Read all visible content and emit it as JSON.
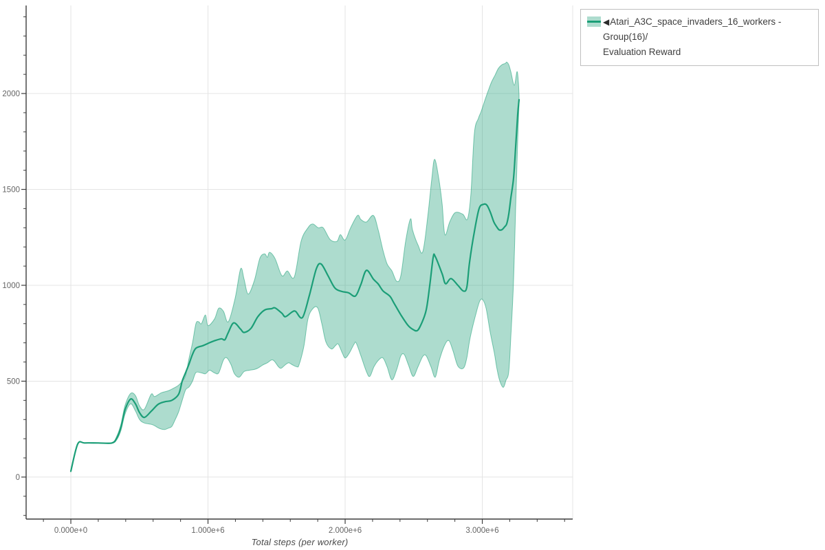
{
  "page": {
    "background": "#ffffff"
  },
  "legend": {
    "arrow": "◀",
    "label_line1": "Atari_A3C_space_invaders_16_workers - Group(16)/",
    "label_line2": "Evaluation Reward",
    "marker_color": "#1b9e77",
    "band_color": "rgba(27,158,119,0.36)"
  },
  "axes": {
    "x_title": "Total steps (per worker)",
    "tick_label_color": "#646464",
    "axis_color": "#3b3b3b",
    "grid_color": "#e4e4e4"
  },
  "chart_data": {
    "type": "line",
    "title": "",
    "xlabel": "Total steps (per worker)",
    "ylabel": "",
    "x_units": "steps (values in millions, labels in scientific notation)",
    "xlim": [
      -0.326,
      3.659
    ],
    "ylim": [
      -219,
      2459
    ],
    "grid": "major",
    "legend_position": "outside top-right",
    "band_color": "rgba(27,158,119,0.36)",
    "band_edge_color": "rgba(27,158,119,0.55)",
    "x_ticks": [
      {
        "value": 0,
        "label": "0.000e+0"
      },
      {
        "value": 1,
        "label": "1.000e+6"
      },
      {
        "value": 2,
        "label": "2.000e+6"
      },
      {
        "value": 3,
        "label": "3.000e+6"
      }
    ],
    "x_minor_step": 0.2,
    "x_grid_extra": [
      3.659
    ],
    "y_ticks": [
      {
        "value": 0,
        "label": "0"
      },
      {
        "value": 500,
        "label": "500"
      },
      {
        "value": 1000,
        "label": "1000"
      },
      {
        "value": 1500,
        "label": "1500"
      },
      {
        "value": 2000,
        "label": "2000"
      }
    ],
    "y_minor_step": 100,
    "series": [
      {
        "name": "Atari_A3C_space_invaders_16_workers - Group(16)/Evaluation Reward (mean)",
        "role": "mean",
        "color": "#1b9e77",
        "points": [
          [
            0.0,
            30
          ],
          [
            0.05,
            172
          ],
          [
            0.1,
            178
          ],
          [
            0.2,
            178
          ],
          [
            0.3,
            178
          ],
          [
            0.336,
            205
          ],
          [
            0.366,
            262
          ],
          [
            0.396,
            352
          ],
          [
            0.436,
            407
          ],
          [
            0.471,
            382
          ],
          [
            0.501,
            336
          ],
          [
            0.536,
            311
          ],
          [
            0.586,
            343
          ],
          [
            0.636,
            379
          ],
          [
            0.686,
            393
          ],
          [
            0.736,
            400
          ],
          [
            0.786,
            432
          ],
          [
            0.812,
            500
          ],
          [
            0.837,
            545
          ],
          [
            0.862,
            590
          ],
          [
            0.887,
            640
          ],
          [
            0.912,
            672
          ],
          [
            0.962,
            685
          ],
          [
            1.0,
            697
          ],
          [
            1.048,
            711
          ],
          [
            1.098,
            721
          ],
          [
            1.123,
            716
          ],
          [
            1.148,
            754
          ],
          [
            1.188,
            804
          ],
          [
            1.238,
            771
          ],
          [
            1.263,
            754
          ],
          [
            1.313,
            775
          ],
          [
            1.363,
            836
          ],
          [
            1.413,
            871
          ],
          [
            1.464,
            878
          ],
          [
            1.489,
            882
          ],
          [
            1.539,
            854
          ],
          [
            1.564,
            836
          ],
          [
            1.614,
            861
          ],
          [
            1.639,
            864
          ],
          [
            1.689,
            832
          ],
          [
            1.74,
            950
          ],
          [
            1.79,
            1086
          ],
          [
            1.825,
            1111
          ],
          [
            1.875,
            1050
          ],
          [
            1.925,
            986
          ],
          [
            1.975,
            968
          ],
          [
            2.025,
            961
          ],
          [
            2.075,
            944
          ],
          [
            2.115,
            1005
          ],
          [
            2.155,
            1078
          ],
          [
            2.206,
            1032
          ],
          [
            2.241,
            1007
          ],
          [
            2.276,
            971
          ],
          [
            2.326,
            943
          ],
          [
            2.356,
            907
          ],
          [
            2.406,
            846
          ],
          [
            2.456,
            793
          ],
          [
            2.491,
            771
          ],
          [
            2.526,
            764
          ],
          [
            2.556,
            800
          ],
          [
            2.591,
            871
          ],
          [
            2.617,
            1000
          ],
          [
            2.642,
            1146
          ],
          [
            2.657,
            1150
          ],
          [
            2.707,
            1060
          ],
          [
            2.732,
            1008
          ],
          [
            2.772,
            1035
          ],
          [
            2.822,
            1000
          ],
          [
            2.862,
            970
          ],
          [
            2.887,
            990
          ],
          [
            2.907,
            1120
          ],
          [
            2.942,
            1280
          ],
          [
            2.977,
            1400
          ],
          [
            3.008,
            1422
          ],
          [
            3.033,
            1418
          ],
          [
            3.058,
            1382
          ],
          [
            3.083,
            1332
          ],
          [
            3.103,
            1307
          ],
          [
            3.123,
            1289
          ],
          [
            3.143,
            1290
          ],
          [
            3.163,
            1305
          ],
          [
            3.178,
            1320
          ],
          [
            3.193,
            1371
          ],
          [
            3.208,
            1455
          ],
          [
            3.228,
            1560
          ],
          [
            3.243,
            1720
          ],
          [
            3.258,
            1890
          ],
          [
            3.268,
            1968
          ]
        ]
      },
      {
        "name": "band upper (max)",
        "role": "band_upper",
        "color": "rgba(27,158,119,0.36)",
        "points": [
          [
            0.0,
            30
          ],
          [
            0.05,
            172
          ],
          [
            0.1,
            178
          ],
          [
            0.2,
            178
          ],
          [
            0.3,
            180
          ],
          [
            0.336,
            215
          ],
          [
            0.366,
            278
          ],
          [
            0.396,
            375
          ],
          [
            0.436,
            436
          ],
          [
            0.471,
            425
          ],
          [
            0.501,
            371
          ],
          [
            0.536,
            354
          ],
          [
            0.586,
            432
          ],
          [
            0.611,
            420
          ],
          [
            0.661,
            440
          ],
          [
            0.711,
            450
          ],
          [
            0.761,
            468
          ],
          [
            0.786,
            479
          ],
          [
            0.812,
            500
          ],
          [
            0.837,
            530
          ],
          [
            0.862,
            620
          ],
          [
            0.887,
            700
          ],
          [
            0.912,
            800
          ],
          [
            0.932,
            810
          ],
          [
            0.952,
            800
          ],
          [
            0.982,
            845
          ],
          [
            1.0,
            790
          ],
          [
            1.048,
            825
          ],
          [
            1.078,
            880
          ],
          [
            1.113,
            864
          ],
          [
            1.148,
            810
          ],
          [
            1.198,
            932
          ],
          [
            1.238,
            1086
          ],
          [
            1.263,
            1032
          ],
          [
            1.293,
            954
          ],
          [
            1.338,
            1025
          ],
          [
            1.378,
            1140
          ],
          [
            1.413,
            1164
          ],
          [
            1.433,
            1146
          ],
          [
            1.449,
            1172
          ],
          [
            1.489,
            1139
          ],
          [
            1.539,
            1050
          ],
          [
            1.579,
            1075
          ],
          [
            1.629,
            1043
          ],
          [
            1.679,
            1230
          ],
          [
            1.729,
            1300
          ],
          [
            1.764,
            1320
          ],
          [
            1.804,
            1300
          ],
          [
            1.84,
            1300
          ],
          [
            1.89,
            1239
          ],
          [
            1.94,
            1229
          ],
          [
            1.965,
            1264
          ],
          [
            2.0,
            1236
          ],
          [
            2.04,
            1300
          ],
          [
            2.09,
            1364
          ],
          [
            2.115,
            1343
          ],
          [
            2.155,
            1330
          ],
          [
            2.206,
            1364
          ],
          [
            2.241,
            1289
          ],
          [
            2.276,
            1182
          ],
          [
            2.306,
            1111
          ],
          [
            2.341,
            1075
          ],
          [
            2.376,
            1021
          ],
          [
            2.406,
            1050
          ],
          [
            2.441,
            1229
          ],
          [
            2.476,
            1346
          ],
          [
            2.491,
            1289
          ],
          [
            2.531,
            1210
          ],
          [
            2.566,
            1175
          ],
          [
            2.601,
            1350
          ],
          [
            2.631,
            1550
          ],
          [
            2.652,
            1657
          ],
          [
            2.682,
            1560
          ],
          [
            2.707,
            1425
          ],
          [
            2.727,
            1264
          ],
          [
            2.762,
            1330
          ],
          [
            2.802,
            1379
          ],
          [
            2.857,
            1371
          ],
          [
            2.892,
            1346
          ],
          [
            2.917,
            1479
          ],
          [
            2.942,
            1793
          ],
          [
            2.972,
            1871
          ],
          [
            2.992,
            1907
          ],
          [
            3.017,
            1961
          ],
          [
            3.043,
            2014
          ],
          [
            3.068,
            2061
          ],
          [
            3.093,
            2096
          ],
          [
            3.118,
            2132
          ],
          [
            3.143,
            2150
          ],
          [
            3.168,
            2157
          ],
          [
            3.178,
            2164
          ],
          [
            3.193,
            2150
          ],
          [
            3.208,
            2114
          ],
          [
            3.233,
            2043
          ],
          [
            3.253,
            2114
          ],
          [
            3.263,
            2060
          ],
          [
            3.268,
            1990
          ]
        ]
      },
      {
        "name": "band lower (min)",
        "role": "band_lower",
        "color": "rgba(27,158,119,0.36)",
        "points": [
          [
            0.0,
            30
          ],
          [
            0.05,
            172
          ],
          [
            0.1,
            178
          ],
          [
            0.2,
            178
          ],
          [
            0.3,
            176
          ],
          [
            0.336,
            196
          ],
          [
            0.366,
            245
          ],
          [
            0.396,
            330
          ],
          [
            0.436,
            382
          ],
          [
            0.471,
            345
          ],
          [
            0.501,
            300
          ],
          [
            0.536,
            282
          ],
          [
            0.586,
            275
          ],
          [
            0.611,
            268
          ],
          [
            0.636,
            257
          ],
          [
            0.661,
            250
          ],
          [
            0.686,
            248
          ],
          [
            0.711,
            255
          ],
          [
            0.736,
            264
          ],
          [
            0.761,
            300
          ],
          [
            0.786,
            340
          ],
          [
            0.812,
            400
          ],
          [
            0.837,
            455
          ],
          [
            0.862,
            470
          ],
          [
            0.887,
            500
          ],
          [
            0.912,
            545
          ],
          [
            0.952,
            543
          ],
          [
            0.982,
            539
          ],
          [
            1.012,
            557
          ],
          [
            1.048,
            543
          ],
          [
            1.078,
            543
          ],
          [
            1.113,
            611
          ],
          [
            1.138,
            621
          ],
          [
            1.168,
            586
          ],
          [
            1.193,
            539
          ],
          [
            1.228,
            521
          ],
          [
            1.263,
            550
          ],
          [
            1.303,
            557
          ],
          [
            1.338,
            561
          ],
          [
            1.363,
            568
          ],
          [
            1.403,
            586
          ],
          [
            1.433,
            596
          ],
          [
            1.464,
            611
          ],
          [
            1.484,
            604
          ],
          [
            1.514,
            575
          ],
          [
            1.534,
            568
          ],
          [
            1.564,
            586
          ],
          [
            1.589,
            596
          ],
          [
            1.614,
            586
          ],
          [
            1.649,
            575
          ],
          [
            1.664,
            586
          ],
          [
            1.699,
            682
          ],
          [
            1.729,
            825
          ],
          [
            1.764,
            878
          ],
          [
            1.8,
            882
          ],
          [
            1.83,
            800
          ],
          [
            1.86,
            704
          ],
          [
            1.9,
            668
          ],
          [
            1.93,
            686
          ],
          [
            1.95,
            693
          ],
          [
            1.98,
            646
          ],
          [
            2.0,
            621
          ],
          [
            2.03,
            646
          ],
          [
            2.065,
            693
          ],
          [
            2.08,
            700
          ],
          [
            2.115,
            632
          ],
          [
            2.155,
            550
          ],
          [
            2.18,
            525
          ],
          [
            2.21,
            575
          ],
          [
            2.245,
            611
          ],
          [
            2.276,
            621
          ],
          [
            2.306,
            575
          ],
          [
            2.341,
            507
          ],
          [
            2.376,
            561
          ],
          [
            2.406,
            632
          ],
          [
            2.431,
            639
          ],
          [
            2.461,
            586
          ],
          [
            2.496,
            525
          ],
          [
            2.531,
            575
          ],
          [
            2.566,
            629
          ],
          [
            2.591,
            632
          ],
          [
            2.626,
            575
          ],
          [
            2.657,
            521
          ],
          [
            2.687,
            610
          ],
          [
            2.727,
            690
          ],
          [
            2.757,
            711
          ],
          [
            2.787,
            657
          ],
          [
            2.822,
            579
          ],
          [
            2.862,
            568
          ],
          [
            2.887,
            621
          ],
          [
            2.912,
            729
          ],
          [
            2.957,
            861
          ],
          [
            2.982,
            918
          ],
          [
            3.003,
            925
          ],
          [
            3.028,
            879
          ],
          [
            3.058,
            754
          ],
          [
            3.088,
            646
          ],
          [
            3.108,
            560
          ],
          [
            3.128,
            500
          ],
          [
            3.153,
            468
          ],
          [
            3.173,
            505
          ],
          [
            3.193,
            550
          ],
          [
            3.208,
            730
          ],
          [
            3.228,
            1025
          ],
          [
            3.243,
            1400
          ],
          [
            3.258,
            1750
          ],
          [
            3.268,
            1950
          ]
        ]
      }
    ]
  }
}
